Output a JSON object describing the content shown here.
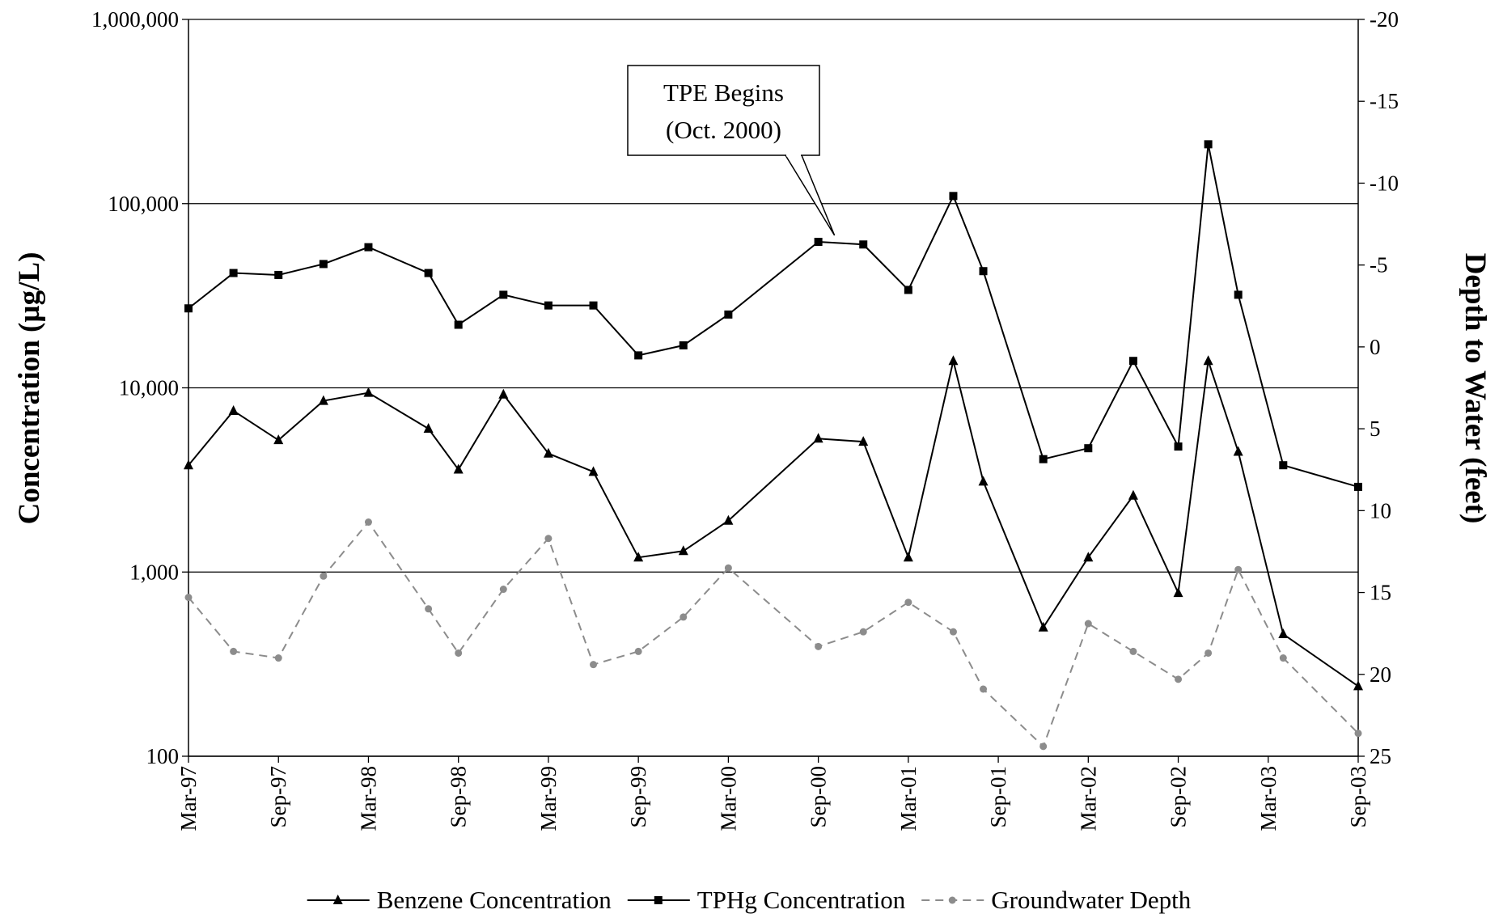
{
  "chart_data": {
    "type": "line",
    "y_title": "Concentration (µg/L)",
    "y2_title": "Depth to Water (feet)",
    "annotation": {
      "lines": [
        "TPE Begins",
        "(Oct. 2000)"
      ],
      "x": "Sep-00"
    },
    "x": [
      "Mar-97",
      "Jun-97",
      "Sep-97",
      "Dec-97",
      "Mar-98",
      "Jul-98",
      "Sep-98",
      "Dec-98",
      "Mar-99",
      "Jun-99",
      "Sep-99",
      "Dec-99",
      "Mar-00",
      "Sep-00",
      "Dec-00",
      "Mar-01",
      "Jun-01",
      "Aug-01",
      "Dec-01",
      "Mar-02",
      "Jun-02",
      "Sep-02",
      "Nov-02",
      "Jan-03",
      "Apr-03",
      "Sep-03"
    ],
    "xlim": [
      "Mar-97",
      "Sep-03"
    ],
    "xticks": [
      "Mar-97",
      "Sep-97",
      "Mar-98",
      "Sep-98",
      "Mar-99",
      "Sep-99",
      "Mar-00",
      "Sep-00",
      "Mar-01",
      "Sep-01",
      "Mar-02",
      "Sep-02",
      "Mar-03",
      "Sep-03"
    ],
    "ylim": [
      100,
      1000000
    ],
    "log_y": true,
    "yticks": [
      {
        "value": 100,
        "label": "100"
      },
      {
        "value": 1000,
        "label": "1,000"
      },
      {
        "value": 10000,
        "label": "10,000"
      },
      {
        "value": 100000,
        "label": "100,000"
      },
      {
        "value": 1000000,
        "label": "1,000,000"
      }
    ],
    "y2lim": [
      25,
      -20
    ],
    "y2ticks": [
      25,
      20,
      15,
      10,
      5,
      0,
      -5,
      -10,
      -15,
      -20
    ],
    "grid": true,
    "legend": "bottom",
    "series": [
      {
        "name": "Benzene Concentration",
        "color": "#000000",
        "marker": "triangle",
        "dashed": false,
        "values": [
          3800,
          7500,
          5200,
          8500,
          9400,
          6000,
          3600,
          9200,
          4400,
          3500,
          1200,
          1300,
          1900,
          5300,
          5100,
          1200,
          14000,
          3100,
          500,
          1200,
          2600,
          770,
          14000,
          4500,
          460,
          240
        ]
      },
      {
        "name": "TPHg Concentration",
        "color": "#000000",
        "marker": "square",
        "dashed": false,
        "values": [
          27000,
          42000,
          41000,
          47000,
          58000,
          42000,
          22000,
          32000,
          28000,
          28000,
          15000,
          17000,
          25000,
          62000,
          60000,
          34000,
          110000,
          43000,
          4100,
          4700,
          14000,
          4800,
          210000,
          32000,
          3800,
          2900
        ]
      },
      {
        "name": "Groundwater Depth",
        "color": "#8c8c8c",
        "marker": "circle",
        "dashed": true,
        "axis": "y2",
        "values": [
          15.3,
          18.6,
          19.0,
          14.0,
          10.7,
          16.0,
          18.7,
          14.8,
          11.7,
          19.4,
          18.6,
          16.5,
          13.5,
          18.3,
          17.4,
          15.6,
          17.4,
          20.9,
          24.4,
          16.9,
          18.6,
          20.3,
          18.7,
          13.6,
          19.0,
          23.6
        ]
      }
    ]
  }
}
